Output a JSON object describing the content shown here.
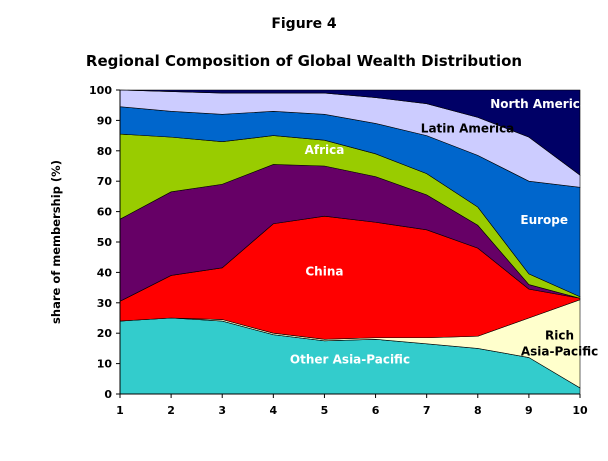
{
  "figure_label": "Figure 4",
  "chart_data": {
    "type": "area",
    "stacked": true,
    "title": "Regional Composition of Global Wealth Distribution",
    "xlabel": "",
    "ylabel": "share of membership (%)",
    "x": [
      1,
      2,
      3,
      4,
      5,
      6,
      7,
      8,
      9,
      10
    ],
    "ylim": [
      0,
      100
    ],
    "yticks": [
      0,
      10,
      20,
      30,
      40,
      50,
      60,
      70,
      80,
      90,
      100
    ],
    "series": [
      {
        "name": "Other Asia-Pacific",
        "color": "#33CCCC",
        "label_x": 5.5,
        "label_y": 10,
        "values": [
          24,
          25,
          24,
          19.5,
          17.5,
          18,
          16.5,
          15,
          12,
          2
        ]
      },
      {
        "name": "Rich Asia-Pacific",
        "color": "#FFFFCC",
        "label_x": 9.6,
        "label_y": 18,
        "values": [
          0,
          0,
          0.5,
          0.5,
          0.5,
          0.5,
          2,
          4,
          13,
          29
        ]
      },
      {
        "name": "China",
        "color": "#FF0000",
        "label_x": 5,
        "label_y": 39,
        "values": [
          6.5,
          14,
          17,
          36,
          40.5,
          38,
          35.5,
          29,
          9.5,
          0.5
        ]
      },
      {
        "name": "",
        "color": "#660066",
        "label_x": 5,
        "label_y": 67,
        "values": [
          27,
          27.5,
          27.5,
          19.5,
          16.5,
          15,
          11.5,
          7.5,
          1.5,
          0
        ]
      },
      {
        "name": "Africa",
        "color": "#99CC00",
        "label_x": 5,
        "label_y": 79,
        "values": [
          28,
          18,
          14,
          9.5,
          8.5,
          7.5,
          7,
          6,
          3.5,
          0.5
        ]
      },
      {
        "name": "Europe",
        "color": "#0066CC",
        "label_x": 9.3,
        "label_y": 56,
        "values": [
          9,
          8.5,
          9,
          8,
          8.5,
          10,
          12.5,
          17,
          30.5,
          36
        ]
      },
      {
        "name": "Latin America",
        "color": "#CCCCFF",
        "label_x": 7.8,
        "label_y": 86,
        "values": [
          5.5,
          6.5,
          7,
          6,
          7,
          8.5,
          10.5,
          12.5,
          14.5,
          4
        ]
      },
      {
        "name": "North America",
        "color": "#000066",
        "label_x": 9.2,
        "label_y": 94,
        "values": [
          0,
          0.5,
          1,
          1,
          1,
          2.5,
          4.5,
          9,
          15.5,
          28
        ]
      }
    ]
  }
}
